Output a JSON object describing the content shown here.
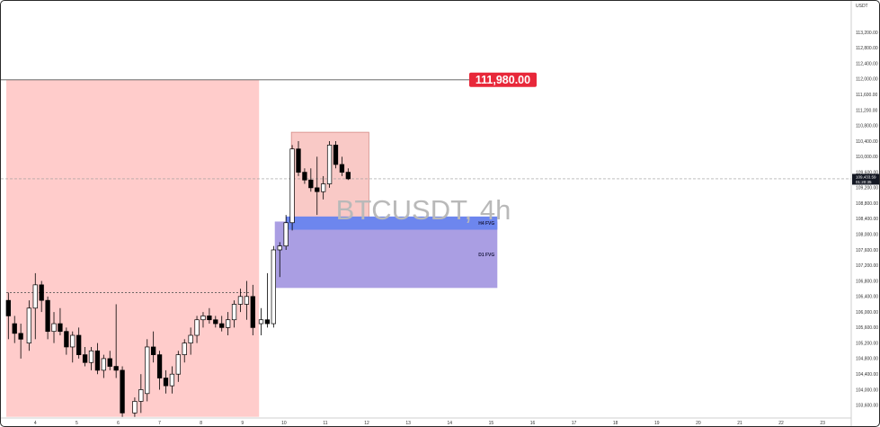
{
  "chart_data": {
    "type": "candlestick",
    "symbol": "BTCUSDT",
    "watermark": "BTCUSDT, 4h",
    "currency": "USDT",
    "y_range": [
      103300,
      114200
    ],
    "y_ticks": [
      113200,
      112800,
      112400,
      112000,
      111600,
      111200,
      110800,
      110400,
      110000,
      109600,
      109200,
      108800,
      108400,
      108000,
      107600,
      107200,
      106800,
      106400,
      106000,
      105600,
      105200,
      104800,
      104400,
      104000,
      103600
    ],
    "y_tick_labels": [
      "113,200.00",
      "112,800.00",
      "112,400.00",
      "112,000.00",
      "111,600.00",
      "111,200.00",
      "110,800.00",
      "110,400.00",
      "110,000.00",
      "109,600.00",
      "109,200.00",
      "108,800.00",
      "108,400.00",
      "108,000.00",
      "107,600.00",
      "107,200.00",
      "106,800.00",
      "106,400.00",
      "106,000.00",
      "105,600.00",
      "105,200.00",
      "104,800.00",
      "104,400.00",
      "104,000.00",
      "103,600.00"
    ],
    "x_range": [
      3.3,
      23.8
    ],
    "x_ticks": [
      4,
      5,
      6,
      7,
      8,
      9,
      10,
      11,
      12,
      13,
      14,
      15,
      16,
      17,
      18,
      19,
      20,
      21,
      22,
      23
    ],
    "x_tick_labels": [
      "4",
      "5",
      "6",
      "7",
      "8",
      "9",
      "10",
      "11",
      "12",
      "13",
      "14",
      "15",
      "16",
      "17",
      "18",
      "19",
      "20",
      "21",
      "22",
      "23"
    ],
    "level_line": {
      "price": 111980,
      "label": "111,980.00",
      "color": "#e8283a"
    },
    "current_price": {
      "price": 109430,
      "label": "109,433.59",
      "countdown": "01:20:35",
      "color": "#131722"
    },
    "dotted_level": {
      "price": 106500,
      "x_start": 3.3,
      "x_end": 9.2
    },
    "zones": [
      {
        "name": "premium-zone",
        "x_start": 3.3,
        "x_end": 9.4,
        "y_top": 111980,
        "y_bottom": 103300,
        "color": "#ffcccb"
      },
      {
        "name": "consolidation-box",
        "x_start": 10.18,
        "x_end": 12.05,
        "y_top": 110630,
        "y_bottom": 108430,
        "color": "#f9c9c6",
        "border": "#d58a86"
      },
      {
        "name": "d1-fvg",
        "label": "D1 FVG",
        "x_start": 9.78,
        "x_end": 15.15,
        "y_top": 108330,
        "y_bottom": 106620,
        "color": "#aa9ee3"
      },
      {
        "name": "h4-fvg",
        "label": "H4 FVG",
        "x_start": 10.05,
        "x_end": 15.15,
        "y_top": 108460,
        "y_bottom": 108120,
        "color": "#6d86ee"
      }
    ],
    "candles": [
      {
        "x": 3.35,
        "o": 106300,
        "h": 106500,
        "l": 105300,
        "c": 105900
      },
      {
        "x": 3.5,
        "o": 105700,
        "h": 105900,
        "l": 105200,
        "c": 105450
      },
      {
        "x": 3.65,
        "o": 105450,
        "h": 105700,
        "l": 104800,
        "c": 105300
      },
      {
        "x": 3.85,
        "o": 105200,
        "h": 106300,
        "l": 105000,
        "c": 106100
      },
      {
        "x": 4.0,
        "o": 106100,
        "h": 107000,
        "l": 105300,
        "c": 106700
      },
      {
        "x": 4.15,
        "o": 106700,
        "h": 106800,
        "l": 106000,
        "c": 106300
      },
      {
        "x": 4.3,
        "o": 106300,
        "h": 106400,
        "l": 105300,
        "c": 105500
      },
      {
        "x": 4.45,
        "o": 105500,
        "h": 106000,
        "l": 105200,
        "c": 105700
      },
      {
        "x": 4.6,
        "o": 105700,
        "h": 106100,
        "l": 105400,
        "c": 105500
      },
      {
        "x": 4.75,
        "o": 105500,
        "h": 105600,
        "l": 104900,
        "c": 105100
      },
      {
        "x": 4.9,
        "o": 105100,
        "h": 105500,
        "l": 104700,
        "c": 105400
      },
      {
        "x": 5.05,
        "o": 105400,
        "h": 105600,
        "l": 104800,
        "c": 104900
      },
      {
        "x": 5.2,
        "o": 104900,
        "h": 105100,
        "l": 104600,
        "c": 104700
      },
      {
        "x": 5.35,
        "o": 104700,
        "h": 105100,
        "l": 104500,
        "c": 105000
      },
      {
        "x": 5.5,
        "o": 105000,
        "h": 105200,
        "l": 104400,
        "c": 104500
      },
      {
        "x": 5.65,
        "o": 104500,
        "h": 104900,
        "l": 104300,
        "c": 104800
      },
      {
        "x": 5.8,
        "o": 104800,
        "h": 105000,
        "l": 104500,
        "c": 104600
      },
      {
        "x": 5.95,
        "o": 104600,
        "h": 106200,
        "l": 104300,
        "c": 104500
      },
      {
        "x": 6.1,
        "o": 104500,
        "h": 104600,
        "l": 103300,
        "c": 103400
      },
      {
        "x": 6.4,
        "o": 103400,
        "h": 103800,
        "l": 103300,
        "c": 103700
      },
      {
        "x": 6.55,
        "o": 103700,
        "h": 104400,
        "l": 103400,
        "c": 104000
      },
      {
        "x": 6.7,
        "o": 103900,
        "h": 105300,
        "l": 103700,
        "c": 105100
      },
      {
        "x": 6.85,
        "o": 105100,
        "h": 105500,
        "l": 104700,
        "c": 104900
      },
      {
        "x": 7.0,
        "o": 104900,
        "h": 105000,
        "l": 104000,
        "c": 104300
      },
      {
        "x": 7.15,
        "o": 104300,
        "h": 104500,
        "l": 103900,
        "c": 104100
      },
      {
        "x": 7.3,
        "o": 104100,
        "h": 104600,
        "l": 103900,
        "c": 104400
      },
      {
        "x": 7.45,
        "o": 104400,
        "h": 105000,
        "l": 104200,
        "c": 104900
      },
      {
        "x": 7.6,
        "o": 104900,
        "h": 105300,
        "l": 104700,
        "c": 105200
      },
      {
        "x": 7.75,
        "o": 105200,
        "h": 105600,
        "l": 104900,
        "c": 105400
      },
      {
        "x": 7.9,
        "o": 105400,
        "h": 105900,
        "l": 105200,
        "c": 105800
      },
      {
        "x": 8.05,
        "o": 105800,
        "h": 106000,
        "l": 105600,
        "c": 105900
      },
      {
        "x": 8.2,
        "o": 105900,
        "h": 106100,
        "l": 105700,
        "c": 105800
      },
      {
        "x": 8.35,
        "o": 105800,
        "h": 105900,
        "l": 105600,
        "c": 105700
      },
      {
        "x": 8.5,
        "o": 105700,
        "h": 105900,
        "l": 105500,
        "c": 105600
      },
      {
        "x": 8.65,
        "o": 105600,
        "h": 106000,
        "l": 105400,
        "c": 105800
      },
      {
        "x": 8.8,
        "o": 105800,
        "h": 106300,
        "l": 105600,
        "c": 106200
      },
      {
        "x": 8.95,
        "o": 106200,
        "h": 106600,
        "l": 106000,
        "c": 106400
      },
      {
        "x": 9.1,
        "o": 106200,
        "h": 106800,
        "l": 105800,
        "c": 106400
      },
      {
        "x": 9.25,
        "o": 106400,
        "h": 106700,
        "l": 105400,
        "c": 105600
      },
      {
        "x": 9.45,
        "o": 105700,
        "h": 106100,
        "l": 105400,
        "c": 105800
      },
      {
        "x": 9.6,
        "o": 105800,
        "h": 107000,
        "l": 105600,
        "c": 105700
      },
      {
        "x": 9.75,
        "o": 105700,
        "h": 107700,
        "l": 105600,
        "c": 107600
      },
      {
        "x": 9.9,
        "o": 107600,
        "h": 107800,
        "l": 106900,
        "c": 107700
      },
      {
        "x": 10.05,
        "o": 107700,
        "h": 108500,
        "l": 107600,
        "c": 108300
      },
      {
        "x": 10.2,
        "o": 108300,
        "h": 110300,
        "l": 108100,
        "c": 110200
      },
      {
        "x": 10.35,
        "o": 110200,
        "h": 110400,
        "l": 109500,
        "c": 109600
      },
      {
        "x": 10.5,
        "o": 109600,
        "h": 109700,
        "l": 109300,
        "c": 109400
      },
      {
        "x": 10.65,
        "o": 109400,
        "h": 109700,
        "l": 109100,
        "c": 109200
      },
      {
        "x": 10.8,
        "o": 109200,
        "h": 110000,
        "l": 108500,
        "c": 109100
      },
      {
        "x": 10.95,
        "o": 109100,
        "h": 109500,
        "l": 108900,
        "c": 109300
      },
      {
        "x": 11.1,
        "o": 109300,
        "h": 110400,
        "l": 109200,
        "c": 110300
      },
      {
        "x": 11.25,
        "o": 110300,
        "h": 110400,
        "l": 109700,
        "c": 109800
      },
      {
        "x": 11.4,
        "o": 109800,
        "h": 110000,
        "l": 109500,
        "c": 109600
      },
      {
        "x": 11.55,
        "o": 109600,
        "h": 109700,
        "l": 109400,
        "c": 109430
      }
    ]
  }
}
